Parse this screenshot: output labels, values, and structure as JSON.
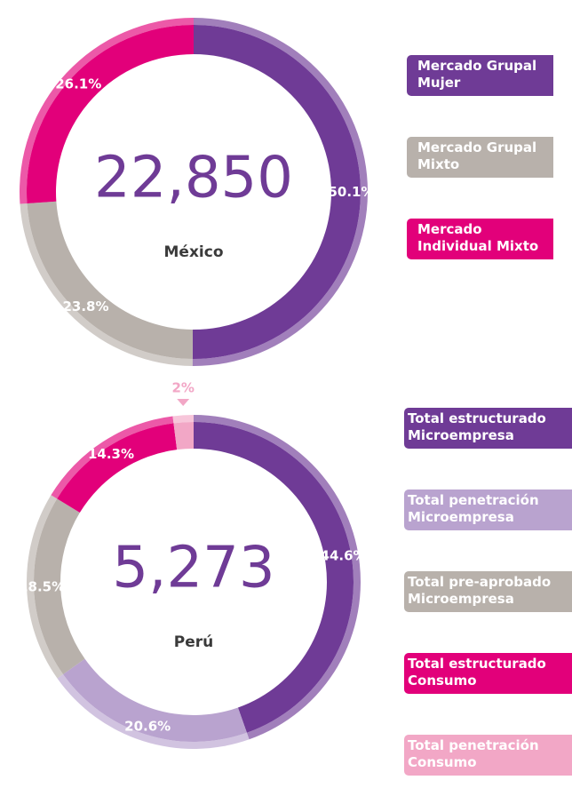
{
  "chart_data": [
    {
      "type": "pie",
      "title": "México",
      "center_label": "22,850",
      "categories": [
        "Mercado Grupal Mujer",
        "Mercado Grupal Mixto",
        "Mercado Individual Mixto"
      ],
      "values": [
        50.1,
        23.8,
        26.1
      ],
      "value_labels": [
        "50.1%",
        "23.8%",
        "26.1%"
      ],
      "colors": [
        "#6f3b96",
        "#b8b1ab",
        "#e2007a"
      ]
    },
    {
      "type": "pie",
      "title": "Perú",
      "center_label": "5,273",
      "categories": [
        "Total estructurado Microempresa",
        "Total penetración Microempresa",
        "Total pre-aprobado Microempresa",
        "Total estructurado Consumo",
        "Total penetración Consumo"
      ],
      "values": [
        44.6,
        20.6,
        18.5,
        14.3,
        2
      ],
      "value_labels": [
        "44.6%",
        "20.6%",
        "18.5%",
        "14.3%",
        "2%"
      ],
      "colors": [
        "#6f3b96",
        "#b9a3cf",
        "#b8b1ab",
        "#e2007a",
        "#f2a7c6"
      ]
    }
  ]
}
